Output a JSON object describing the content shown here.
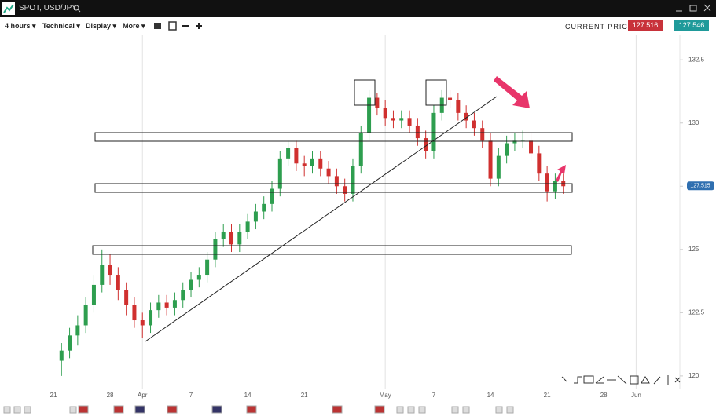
{
  "window": {
    "title": "SPOT, USD/JPY"
  },
  "toolbar": {
    "interval": "4 hours",
    "menus": [
      "Technical",
      "Display",
      "More"
    ],
    "price_caption": "CURRENT PRICE:",
    "bid": "127.516",
    "ask": "127.546"
  },
  "chart_data": {
    "type": "candlestick",
    "x": [
      22,
      23,
      24,
      25,
      26,
      27,
      28,
      29,
      30,
      31,
      32,
      33,
      34,
      35,
      36,
      37,
      38,
      39,
      40,
      41,
      42,
      43,
      44,
      45,
      46,
      47,
      48,
      49,
      50,
      51,
      52,
      53,
      54,
      55,
      56,
      57,
      58,
      59,
      60,
      61,
      62,
      63,
      64,
      65,
      66,
      67,
      68,
      69,
      70,
      71,
      72,
      73,
      74,
      75,
      76,
      77,
      78,
      79,
      80,
      81,
      82,
      83,
      84
    ],
    "open": [
      120.6,
      121.0,
      121.6,
      122.0,
      122.8,
      123.6,
      124.4,
      124.0,
      123.4,
      122.8,
      122.2,
      122.0,
      122.6,
      122.9,
      122.7,
      123.0,
      123.4,
      123.8,
      124.0,
      124.6,
      125.4,
      125.7,
      125.2,
      125.7,
      126.1,
      126.5,
      126.8,
      127.4,
      128.6,
      129.0,
      128.4,
      128.3,
      128.6,
      128.2,
      127.9,
      127.5,
      127.2,
      128.3,
      129.6,
      131.0,
      130.6,
      130.2,
      130.1,
      130.2,
      129.9,
      129.4,
      128.9,
      130.4,
      131.0,
      130.9,
      130.4,
      130.1,
      129.8,
      129.3,
      127.8,
      128.7,
      129.2,
      129.3,
      129.3,
      128.8,
      128.0,
      127.3,
      127.7
    ],
    "high": [
      121.3,
      121.9,
      122.4,
      123.1,
      124.0,
      125.0,
      124.8,
      124.3,
      123.7,
      123.1,
      122.5,
      122.9,
      123.2,
      123.2,
      123.3,
      123.7,
      124.1,
      124.3,
      124.9,
      125.7,
      126.0,
      126.0,
      126.0,
      126.4,
      126.8,
      127.1,
      127.7,
      128.9,
      129.3,
      129.3,
      128.7,
      128.9,
      128.9,
      128.5,
      128.2,
      127.8,
      128.6,
      129.9,
      131.3,
      131.2,
      130.9,
      130.5,
      130.5,
      130.5,
      130.2,
      129.7,
      130.7,
      131.3,
      131.3,
      131.2,
      130.7,
      130.4,
      130.1,
      129.6,
      129.0,
      129.5,
      129.6,
      129.7,
      129.6,
      129.1,
      128.3,
      128.0,
      128.0
    ],
    "low": [
      120.0,
      120.7,
      121.2,
      121.7,
      122.5,
      123.3,
      123.6,
      123.0,
      122.4,
      121.9,
      121.5,
      121.7,
      122.3,
      122.4,
      122.4,
      122.7,
      123.1,
      123.5,
      123.7,
      124.3,
      125.1,
      124.9,
      124.9,
      125.4,
      125.8,
      126.2,
      126.5,
      127.1,
      128.3,
      128.1,
      127.9,
      128.0,
      127.9,
      127.6,
      127.2,
      126.9,
      126.9,
      128.0,
      129.3,
      130.3,
      129.9,
      129.8,
      129.8,
      129.6,
      129.1,
      128.6,
      128.6,
      130.1,
      130.6,
      130.1,
      129.8,
      129.5,
      129.0,
      127.5,
      127.5,
      128.4,
      128.9,
      129.0,
      128.5,
      127.7,
      126.9,
      127.0,
      127.2
    ],
    "close": [
      121.0,
      121.6,
      122.0,
      122.8,
      123.6,
      124.4,
      124.0,
      123.4,
      122.8,
      122.2,
      122.0,
      122.6,
      122.9,
      122.7,
      123.0,
      123.4,
      123.8,
      124.0,
      124.6,
      125.4,
      125.7,
      125.2,
      125.7,
      126.1,
      126.5,
      126.8,
      127.4,
      128.6,
      129.0,
      128.4,
      128.3,
      128.6,
      128.2,
      127.9,
      127.5,
      127.2,
      128.3,
      129.6,
      131.0,
      130.6,
      130.2,
      130.1,
      130.2,
      129.9,
      129.4,
      128.9,
      130.4,
      131.0,
      130.9,
      130.4,
      130.1,
      129.8,
      129.3,
      127.8,
      128.7,
      129.2,
      129.3,
      129.3,
      128.8,
      128.0,
      127.3,
      127.7,
      127.5
    ],
    "up_color": "#2e9e4f",
    "down_color": "#d0302f",
    "xlim": [
      14.4,
      98.4
    ],
    "xticks": [
      21,
      28,
      {
        "value": 32,
        "label": "Apr"
      },
      {
        "value": 38,
        "label": "7"
      },
      {
        "value": 45,
        "label": "14"
      },
      {
        "value": 52,
        "label": "21"
      },
      {
        "value": 62,
        "label": "May"
      },
      {
        "value": 68,
        "label": "7"
      },
      {
        "value": 75,
        "label": "14"
      },
      {
        "value": 82,
        "label": "21"
      },
      {
        "value": 89,
        "label": "28"
      },
      {
        "value": 93,
        "label": "Jun"
      }
    ],
    "ylim": [
      119.5,
      133.5
    ],
    "yticks": [
      120,
      122.5,
      125,
      127.5,
      130,
      132.5
    ],
    "last_price": 127.515
  }
}
